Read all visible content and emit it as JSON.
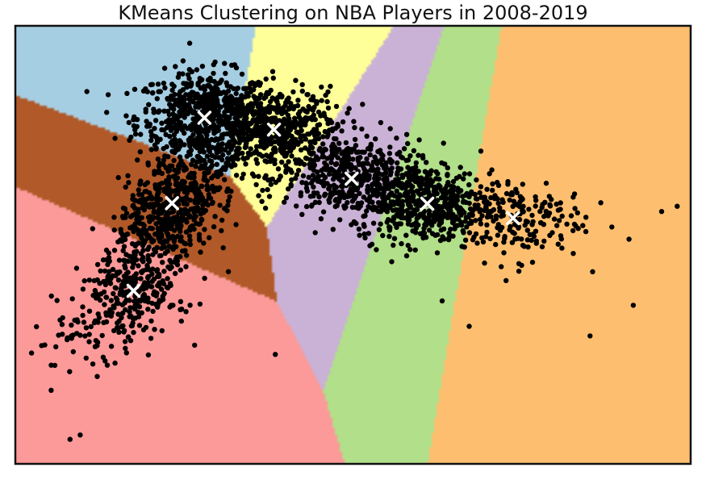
{
  "chart_data": {
    "type": "scatter",
    "title": "KMeans Clustering on NBA Players in 2008-2019",
    "xlabel": "",
    "ylabel": "",
    "axes_ticks": "none",
    "grid": false,
    "legend": "none",
    "xlim": [
      0,
      100
    ],
    "ylim": [
      0,
      100
    ],
    "point_color": "#000000",
    "centroid_marker": "x",
    "centroid_color": "#ffffff",
    "region_colors": [
      "#a6cee3",
      "#ffff99",
      "#cab2d6",
      "#b2df8a",
      "#fdbf6f",
      "#b15928",
      "#fb9a99"
    ],
    "centroids": [
      {
        "cluster": 0,
        "x": 28.0,
        "y": 79.0
      },
      {
        "cluster": 1,
        "x": 38.3,
        "y": 76.3
      },
      {
        "cluster": 2,
        "x": 49.8,
        "y": 65.1
      },
      {
        "cluster": 3,
        "x": 61.0,
        "y": 59.4
      },
      {
        "cluster": 4,
        "x": 73.7,
        "y": 56.1
      },
      {
        "cluster": 5,
        "x": 23.2,
        "y": 59.5
      },
      {
        "cluster": 6,
        "x": 17.5,
        "y": 39.5
      }
    ],
    "cluster_spread": [
      {
        "cluster": 0,
        "sx": 5.0,
        "sy": 5.2,
        "n": 620
      },
      {
        "cluster": 1,
        "sx": 5.0,
        "sy": 4.8,
        "n": 560
      },
      {
        "cluster": 2,
        "sx": 5.0,
        "sy": 4.4,
        "n": 420
      },
      {
        "cluster": 3,
        "sx": 5.0,
        "sy": 4.4,
        "n": 480
      },
      {
        "cluster": 4,
        "sx": 5.2,
        "sy": 4.8,
        "n": 180
      },
      {
        "cluster": 5,
        "sx": 3.4,
        "sy": 6.6,
        "n": 520
      },
      {
        "cluster": 6,
        "sx": 4.2,
        "sy": 7.2,
        "n": 380
      }
    ],
    "outliers": [
      {
        "x": 91.5,
        "y": 36.2
      },
      {
        "x": 95.7,
        "y": 57.6
      },
      {
        "x": 98.0,
        "y": 58.8
      },
      {
        "x": 85.1,
        "y": 29.2
      },
      {
        "x": 67.2,
        "y": 31.4
      },
      {
        "x": 63.2,
        "y": 37.2
      },
      {
        "x": 5.3,
        "y": 16.8
      },
      {
        "x": 8.1,
        "y": 5.6
      },
      {
        "x": 9.6,
        "y": 6.6
      },
      {
        "x": 3.9,
        "y": 27.0
      },
      {
        "x": 38.5,
        "y": 25.0
      },
      {
        "x": 82.6,
        "y": 60.9
      }
    ]
  }
}
